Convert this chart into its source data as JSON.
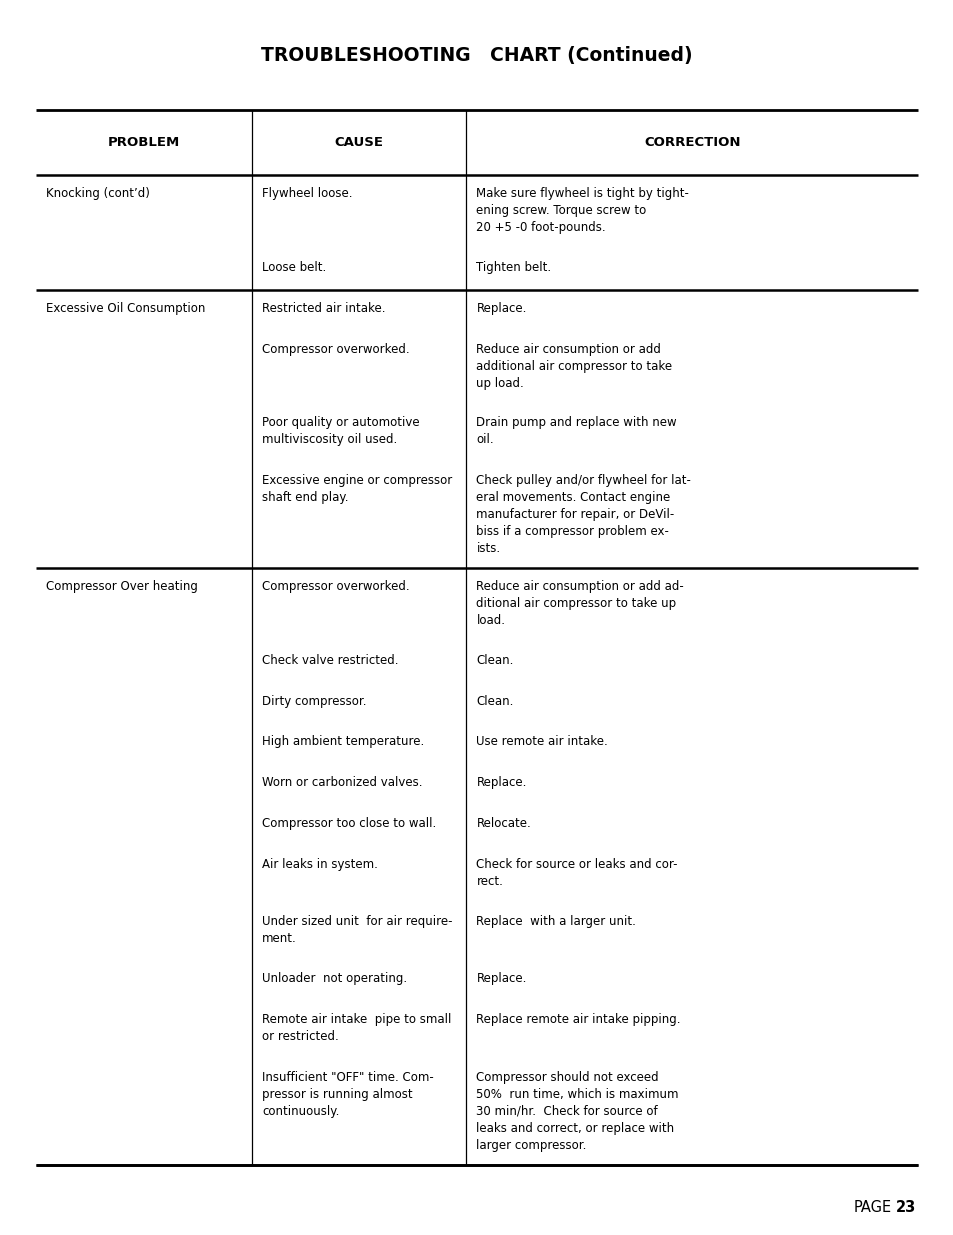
{
  "title": "TROUBLESHOOTING   CHART (Continued)",
  "background_color": "#ffffff",
  "text_color": "#000000",
  "title_fontsize": 13.5,
  "header_fontsize": 9.5,
  "body_fontsize": 8.5,
  "columns": [
    "PROBLEM",
    "CAUSE",
    "CORRECTION"
  ],
  "rows": [
    {
      "problem": "Knocking (cont’d)",
      "cause": "Flywheel loose.",
      "correction": "Make sure flywheel is tight by tight-\nening screw. Torque screw to\n20 +5 -0 foot-pounds.",
      "section_end": false
    },
    {
      "problem": "",
      "cause": "Loose belt.",
      "correction": "Tighten belt.",
      "section_end": true
    },
    {
      "problem": "Excessive Oil Consumption",
      "cause": "Restricted air intake.",
      "correction": "Replace.",
      "section_end": false
    },
    {
      "problem": "",
      "cause": "Compressor overworked.",
      "correction": "Reduce air consumption or add\nadditional air compressor to take\nup load.",
      "section_end": false
    },
    {
      "problem": "",
      "cause": "Poor quality or automotive\nmultiviscosity oil used.",
      "correction": "Drain pump and replace with new\noil.",
      "section_end": false
    },
    {
      "problem": "",
      "cause": "Excessive engine or compressor\nshaft end play.",
      "correction": "Check pulley and/or flywheel for lat-\neral movements. Contact engine\nmanufacturer for repair, or DeVil-\nbiss if a compressor problem ex-\nists.",
      "section_end": true
    },
    {
      "problem": "Compressor Over heating",
      "cause": "Compressor overworked.",
      "correction": "Reduce air consumption or add ad-\nditional air compressor to take up\nload.",
      "section_end": false
    },
    {
      "problem": "",
      "cause": "Check valve restricted.",
      "correction": "Clean.",
      "section_end": false
    },
    {
      "problem": "",
      "cause": "Dirty compressor.",
      "correction": "Clean.",
      "section_end": false
    },
    {
      "problem": "",
      "cause": "High ambient temperature.",
      "correction": "Use remote air intake.",
      "section_end": false
    },
    {
      "problem": "",
      "cause": "Worn or carbonized valves.",
      "correction": "Replace.",
      "section_end": false
    },
    {
      "problem": "",
      "cause": "Compressor too close to wall.",
      "correction": "Relocate.",
      "section_end": false
    },
    {
      "problem": "",
      "cause": "Air leaks in system.",
      "correction": "Check for source or leaks and cor-\nrect.",
      "section_end": false
    },
    {
      "problem": "",
      "cause": "Under sized unit  for air require-\nment.",
      "correction": "Replace  with a larger unit.",
      "section_end": false
    },
    {
      "problem": "",
      "cause": "Unloader  not operating.",
      "correction": "Replace.",
      "section_end": false
    },
    {
      "problem": "",
      "cause": "Remote air intake  pipe to small\nor restricted.",
      "correction": "Replace remote air intake pipping.",
      "section_end": false
    },
    {
      "problem": "",
      "cause": "Insufficient \"OFF\" time. Com-\npressor is running almost\ncontinuously.",
      "correction": "Compressor should not exceed\n50%  run time, which is maximum\n30 min/hr.  Check for source of\nleaks and correct, or replace with\nlarger compressor.",
      "section_end": true
    }
  ]
}
